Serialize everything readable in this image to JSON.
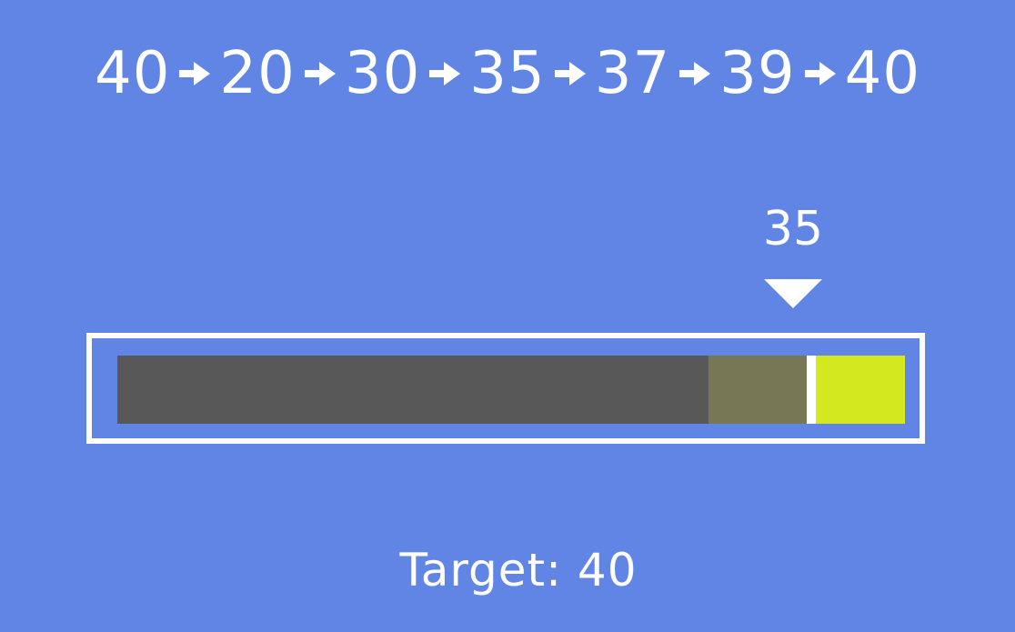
{
  "sequence": {
    "values": [
      "40",
      "20",
      "30",
      "35",
      "37",
      "39",
      "40"
    ]
  },
  "marker": {
    "label": "35",
    "value": 35
  },
  "bar": {
    "scale_max": 40,
    "shade_start": 30,
    "current": 35,
    "target_value": 40,
    "colors": {
      "frame": "#ffffff",
      "track": "#585858",
      "gap": "#777756",
      "divider": "#ffffff",
      "remaining": "#d4e81f"
    }
  },
  "target": {
    "text": "Target: 40"
  },
  "icons": {
    "arrow": "arrow-right-icon",
    "marker": "marker-triangle-icon"
  }
}
